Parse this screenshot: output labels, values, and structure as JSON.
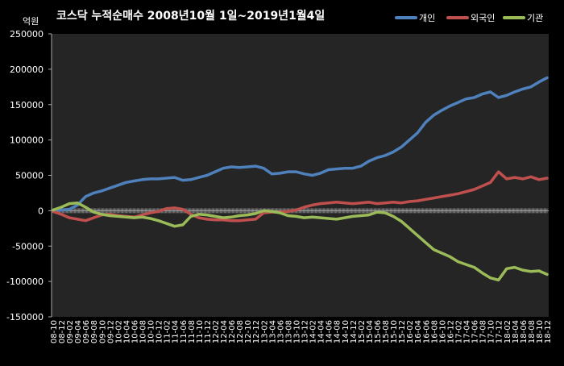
{
  "chart_data": {
    "type": "line",
    "title": "코스닥  누적순매수 2008년10월 1일~2019년1월4일",
    "ylabel": "억원",
    "xlabel": "",
    "ylim": [
      -150000,
      250000
    ],
    "yticks": [
      "250000",
      "200000",
      "150000",
      "100000",
      "50000",
      "0",
      "-50000",
      "-100000",
      "-150000"
    ],
    "grid": "none",
    "legend": "top-right",
    "categories": [
      "08-10",
      "08-12",
      "09-02",
      "09-04",
      "09-06",
      "09-08",
      "09-10",
      "09-12",
      "10-02",
      "10-04",
      "10-06",
      "10-08",
      "10-10",
      "10-12",
      "11-02",
      "11-04",
      "11-06",
      "11-08",
      "11-10",
      "11-12",
      "12-02",
      "12-04",
      "12-06",
      "12-08",
      "12-10",
      "12-12",
      "13-02",
      "13-04",
      "13-06",
      "13-08",
      "13-10",
      "13-12",
      "14-02",
      "14-04",
      "14-06",
      "14-08",
      "14-10",
      "14-12",
      "15-02",
      "15-04",
      "15-06",
      "15-08",
      "15-10",
      "15-12",
      "16-02",
      "16-04",
      "16-06",
      "16-08",
      "16-10",
      "16-12",
      "17-02",
      "17-04",
      "17-06",
      "17-08",
      "17-10",
      "17-12",
      "18-02",
      "18-04",
      "18-06",
      "18-08",
      "18-10",
      "18-12"
    ],
    "series": [
      {
        "name": "개인",
        "color": "#4F81BD",
        "values": [
          0,
          1000,
          2000,
          8000,
          20000,
          25000,
          28000,
          32000,
          36000,
          40000,
          42000,
          44000,
          45000,
          45000,
          46000,
          47000,
          43000,
          44000,
          47000,
          50000,
          55000,
          60000,
          62000,
          61000,
          62000,
          63000,
          60000,
          52000,
          53000,
          55000,
          55000,
          52000,
          50000,
          53000,
          58000,
          59000,
          60000,
          60000,
          63000,
          70000,
          75000,
          78000,
          83000,
          90000,
          100000,
          110000,
          125000,
          135000,
          142000,
          148000,
          153000,
          158000,
          160000,
          165000,
          168000,
          160000,
          163000,
          168000,
          172000,
          175000,
          182000,
          188000
        ]
      },
      {
        "name": "외국인",
        "color": "#C0504D",
        "values": [
          -1000,
          -5000,
          -10000,
          -12000,
          -14000,
          -10000,
          -6000,
          -5000,
          -7000,
          -8000,
          -9000,
          -6000,
          -3000,
          -1000,
          3000,
          4000,
          2000,
          -5000,
          -10000,
          -12000,
          -13000,
          -13000,
          -14000,
          -14000,
          -13000,
          -12000,
          -3000,
          -2000,
          -2000,
          -1000,
          1000,
          5000,
          8000,
          10000,
          11000,
          12000,
          11000,
          10000,
          11000,
          12000,
          10000,
          11000,
          12000,
          11000,
          13000,
          14000,
          16000,
          18000,
          20000,
          22000,
          24000,
          27000,
          30000,
          35000,
          40000,
          55000,
          45000,
          47000,
          45000,
          48000,
          44000,
          46000
        ]
      },
      {
        "name": "기관",
        "color": "#9BBB59",
        "values": [
          1000,
          5000,
          10000,
          11000,
          5000,
          -2000,
          -5000,
          -7000,
          -8000,
          -9000,
          -10000,
          -9000,
          -11000,
          -14000,
          -18000,
          -22000,
          -20000,
          -8000,
          -5000,
          -6000,
          -8000,
          -10000,
          -9000,
          -7000,
          -6000,
          -4000,
          0,
          -1000,
          -3000,
          -7000,
          -8000,
          -10000,
          -9000,
          -10000,
          -11000,
          -12000,
          -10000,
          -8000,
          -7000,
          -6000,
          -2000,
          -3000,
          -8000,
          -15000,
          -25000,
          -35000,
          -45000,
          -55000,
          -60000,
          -65000,
          -72000,
          -76000,
          -80000,
          -88000,
          -95000,
          -98000,
          -82000,
          -80000,
          -84000,
          -86000,
          -85000,
          -90000
        ]
      }
    ]
  }
}
